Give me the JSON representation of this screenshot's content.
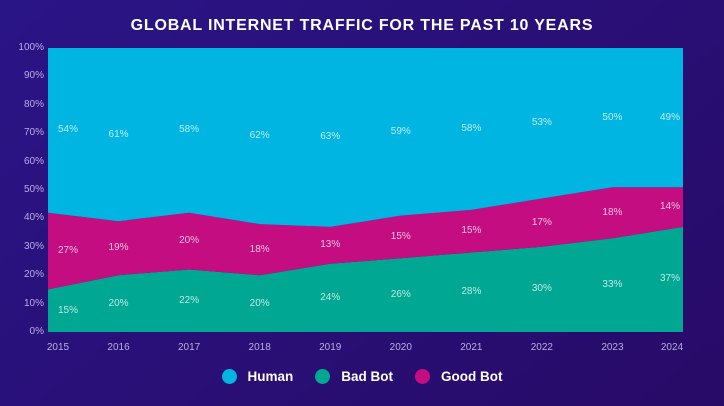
{
  "title": "GLOBAL INTERNET TRAFFIC FOR THE PAST 10 YEARS",
  "colors": {
    "background_top_left": "#2a1587",
    "background_bottom_right": "#280a67",
    "human": "#00b5e2",
    "bad_bot": "#00a793",
    "good_bot": "#c30d80",
    "axis_label": "#b7afe2",
    "value_label": "rgba(255,255,255,0.75)",
    "title_text": "#ffffff",
    "legend_text": "#ffffff"
  },
  "chart_data": {
    "type": "area",
    "stacked": true,
    "title": "GLOBAL INTERNET TRAFFIC FOR THE PAST 10 YEARS",
    "categories": [
      "2015",
      "2016",
      "2017",
      "2018",
      "2019",
      "2020",
      "2021",
      "2022",
      "2023",
      "2024"
    ],
    "series": [
      {
        "name": "Bad Bot",
        "color": "#00a793",
        "values": [
          15,
          20,
          22,
          20,
          24,
          26,
          28,
          30,
          33,
          37
        ]
      },
      {
        "name": "Good Bot",
        "color": "#c30d80",
        "values": [
          27,
          19,
          20,
          18,
          13,
          15,
          15,
          17,
          18,
          14
        ]
      },
      {
        "name": "Human",
        "color": "#00b5e2",
        "values": [
          54,
          61,
          58,
          62,
          63,
          59,
          58,
          53,
          50,
          49
        ],
        "fills_to_top": true
      }
    ],
    "value_label_suffix": "%",
    "y_ticks": [
      "0%",
      "10%",
      "20%",
      "30%",
      "40%",
      "50%",
      "60%",
      "70%",
      "80%",
      "90%",
      "100%"
    ],
    "ylim": [
      0,
      100
    ],
    "grid": false,
    "legend_position": "bottom",
    "legend_order": [
      "Human",
      "Bad Bot",
      "Good Bot"
    ]
  },
  "legend": {
    "items": [
      {
        "label": "Human",
        "color": "#00b5e2"
      },
      {
        "label": "Bad Bot",
        "color": "#00a793"
      },
      {
        "label": "Good Bot",
        "color": "#c30d80"
      }
    ]
  }
}
